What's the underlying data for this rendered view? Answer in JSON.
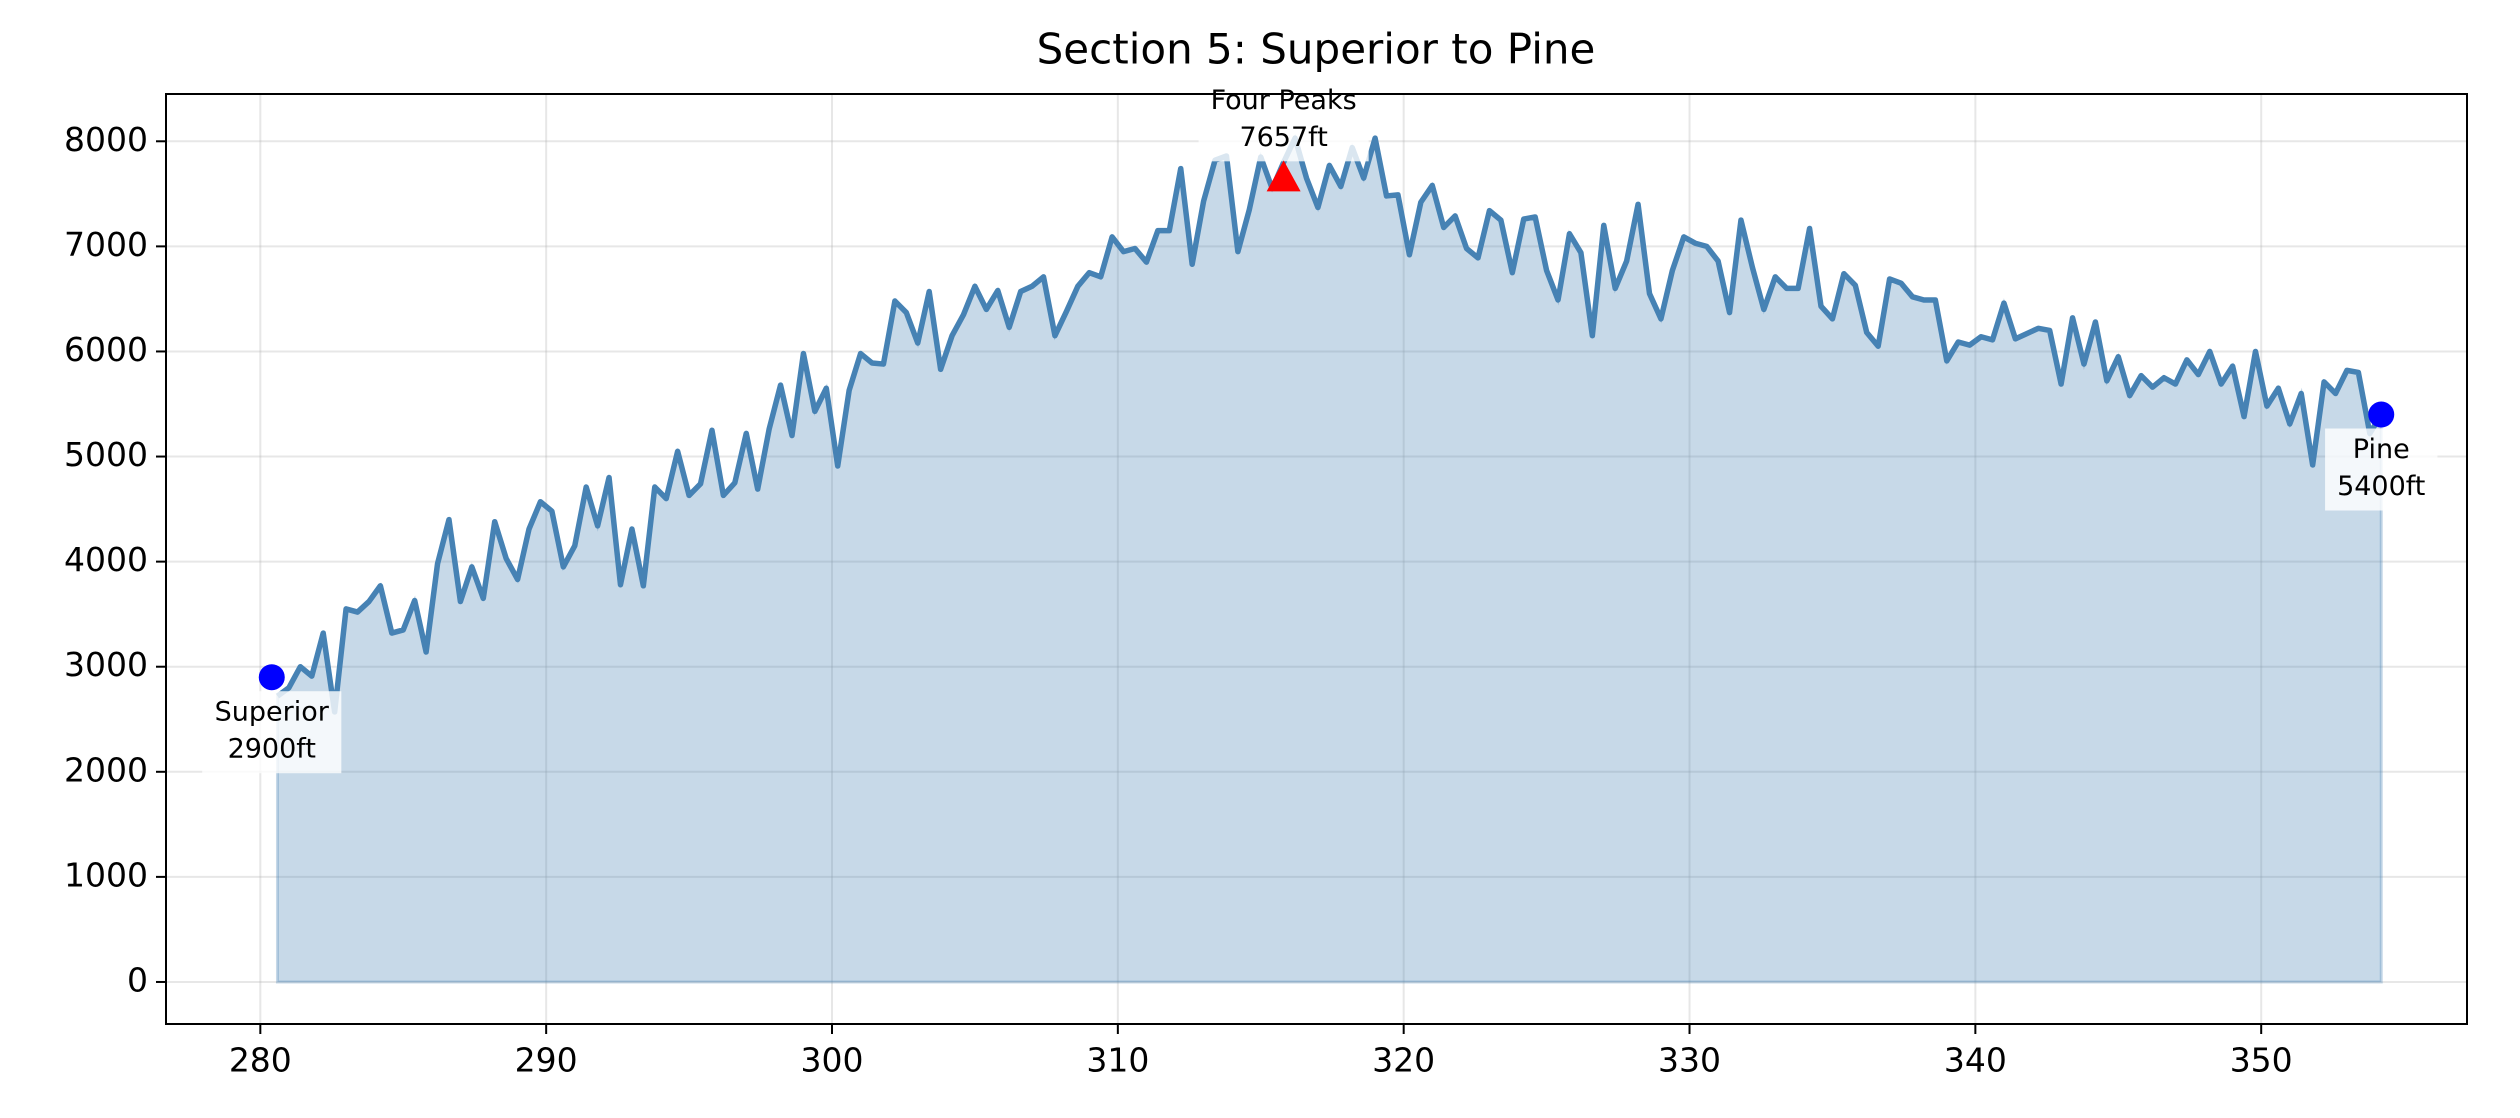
{
  "chart_data": {
    "type": "area",
    "title": "Section 5: Superior to Pine",
    "x": [
      280.6,
      281.0,
      281.4,
      281.8,
      282.2,
      282.6,
      283.0,
      283.4,
      283.8,
      284.2,
      284.6,
      285.0,
      285.4,
      285.8,
      286.2,
      286.6,
      287.0,
      287.4,
      287.8,
      288.2,
      288.6,
      289.0,
      289.4,
      289.8,
      290.2,
      290.6,
      291.0,
      291.4,
      291.8,
      292.2,
      292.6,
      293.0,
      293.4,
      293.8,
      294.2,
      294.6,
      295.0,
      295.4,
      295.8,
      296.2,
      296.6,
      297.0,
      297.4,
      297.8,
      298.2,
      298.6,
      299.0,
      299.4,
      299.8,
      300.2,
      300.6,
      301.0,
      301.4,
      301.8,
      302.2,
      302.6,
      303.0,
      303.4,
      303.8,
      304.2,
      304.6,
      305.0,
      305.4,
      305.8,
      306.2,
      306.6,
      307.0,
      307.4,
      307.8,
      308.2,
      308.6,
      309.0,
      309.4,
      309.8,
      310.2,
      310.6,
      311.0,
      311.4,
      311.8,
      312.2,
      312.6,
      313.0,
      313.4,
      313.8,
      314.2,
      314.6,
      315.0,
      315.4,
      315.8,
      316.2,
      316.6,
      317.0,
      317.4,
      317.8,
      318.2,
      318.6,
      319.0,
      319.4,
      319.8,
      320.2,
      320.6,
      321.0,
      321.4,
      321.8,
      322.2,
      322.6,
      323.0,
      323.4,
      323.8,
      324.2,
      324.6,
      325.0,
      325.4,
      325.8,
      326.2,
      326.6,
      327.0,
      327.4,
      327.8,
      328.2,
      328.6,
      329.0,
      329.4,
      329.8,
      330.2,
      330.6,
      331.0,
      331.4,
      331.8,
      332.2,
      332.6,
      333.0,
      333.4,
      333.8,
      334.2,
      334.6,
      335.0,
      335.4,
      335.8,
      336.2,
      336.6,
      337.0,
      337.4,
      337.8,
      338.2,
      338.6,
      339.0,
      339.4,
      339.8,
      340.2,
      340.6,
      341.0,
      341.4,
      341.8,
      342.2,
      342.6,
      343.0,
      343.4,
      343.8,
      344.2,
      344.6,
      345.0,
      345.4,
      345.8,
      346.2,
      346.6,
      347.0,
      347.4,
      347.8,
      348.2,
      348.6,
      349.0,
      349.4,
      349.8,
      350.2,
      350.6,
      351.0,
      351.4,
      351.8,
      352.2,
      352.6,
      353.0,
      353.4,
      353.8,
      354.2
    ],
    "values": [
      2720,
      2800,
      3000,
      2910,
      3320,
      2570,
      3550,
      3520,
      3620,
      3770,
      3320,
      3350,
      3630,
      3140,
      3980,
      4400,
      3620,
      3950,
      3650,
      4380,
      4030,
      3830,
      4310,
      4570,
      4480,
      3950,
      4150,
      4710,
      4340,
      4800,
      3780,
      4310,
      3770,
      4710,
      4600,
      5050,
      4630,
      4740,
      5250,
      4630,
      4750,
      5220,
      4690,
      5260,
      5680,
      5200,
      5980,
      5430,
      5650,
      4910,
      5630,
      5980,
      5890,
      5880,
      6480,
      6370,
      6080,
      6570,
      5830,
      6150,
      6350,
      6620,
      6400,
      6580,
      6230,
      6570,
      6620,
      6710,
      6150,
      6380,
      6620,
      6750,
      6710,
      7090,
      6950,
      6980,
      6850,
      7150,
      7150,
      7740,
      6830,
      7430,
      7820,
      7860,
      6950,
      7350,
      7850,
      7550,
      7800,
      8030,
      7650,
      7370,
      7770,
      7570,
      7940,
      7650,
      8030,
      7480,
      7490,
      6920,
      7420,
      7580,
      7180,
      7290,
      6980,
      6890,
      7340,
      7250,
      6750,
      7260,
      7280,
      6770,
      6490,
      7120,
      6940,
      6150,
      7200,
      6600,
      6860,
      7400,
      6550,
      6310,
      6770,
      7090,
      7030,
      7000,
      6860,
      6370,
      7250,
      6800,
      6400,
      6710,
      6600,
      6600,
      7170,
      6430,
      6310,
      6740,
      6630,
      6180,
      6050,
      6690,
      6650,
      6520,
      6490,
      6490,
      5910,
      6090,
      6060,
      6140,
      6110,
      6460,
      6120,
      6170,
      6220,
      6200,
      5690,
      6320,
      5880,
      6280,
      5720,
      5950,
      5580,
      5770,
      5660,
      5750,
      5690,
      5920,
      5780,
      6000,
      5690,
      5860,
      5380,
      6000,
      5480,
      5650,
      5310,
      5600,
      4920,
      5710,
      5600,
      5820,
      5800,
      5220,
      5400
    ],
    "color": "#4682b4",
    "xlim": [
      276.7,
      357.2
    ],
    "ylim": [
      -400,
      8450
    ],
    "xticks": [
      280,
      290,
      300,
      310,
      320,
      330,
      340,
      350
    ],
    "yticks": [
      0,
      1000,
      2000,
      3000,
      4000,
      5000,
      6000,
      7000,
      8000
    ],
    "grid": true,
    "waypoints": [
      {
        "name": "Superior",
        "x": 280.4,
        "y": 2900,
        "value_label": "2900ft",
        "color": "#0000ff",
        "marker": "circle"
      },
      {
        "name": "Four Peaks",
        "x": 315.8,
        "y": 7657,
        "value_label": "7657ft",
        "color": "#ff0000",
        "marker": "triangle"
      },
      {
        "name": "Pine",
        "x": 354.2,
        "y": 5400,
        "value_label": "5400ft",
        "color": "#0000ff",
        "marker": "circle"
      }
    ]
  }
}
